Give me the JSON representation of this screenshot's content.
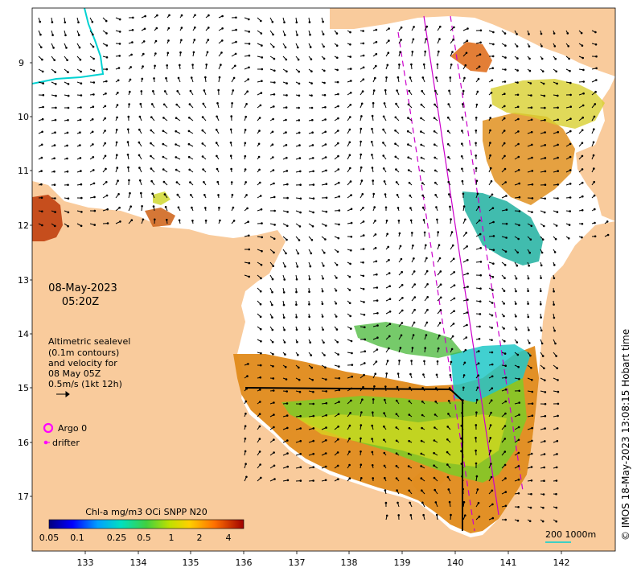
{
  "map": {
    "date": "08-May-2023",
    "time": "05:20Z",
    "legend_text": {
      "line1": "Altimetric sealevel",
      "line2": "(0.1m contours)",
      "line3": "and velocity for",
      "line4": "08 May 05Z",
      "line5": "0.5m/s (1kt 12h)"
    },
    "argo_label": "Argo 0",
    "drifter_label": "drifter",
    "colorbar_title": "Chl-a mg/m3 OCi SNPP N20",
    "colorbar_ticks": [
      "0.05",
      "0.1",
      "0.25",
      "0.5",
      "1",
      "2",
      "4"
    ],
    "scale_label": "200  1000m",
    "credit": "© IMOS 18-May-2023 13:08:15 Hobart time",
    "lon_ticks": [
      "133",
      "134",
      "135",
      "136",
      "137",
      "138",
      "139",
      "140",
      "141",
      "142"
    ],
    "lat_ticks": [
      "9",
      "10",
      "11",
      "12",
      "13",
      "14",
      "15",
      "16",
      "17"
    ],
    "colors": {
      "land": "#f9cb9c",
      "ocean": "#ffffff",
      "argo": "#ff00ff",
      "track": "#cc00cc",
      "cyan_line": "#00d2d2"
    }
  }
}
